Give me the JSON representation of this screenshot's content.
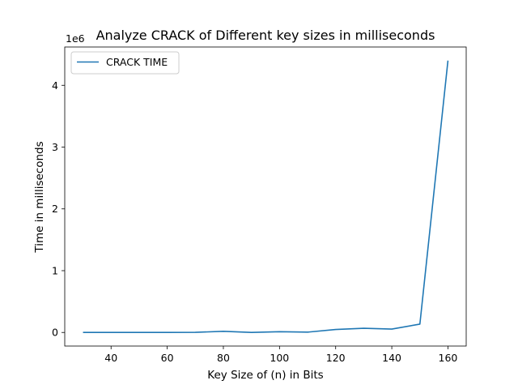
{
  "chart_data": {
    "type": "line",
    "title": "Analyze CRACK of Different key sizes in milliseconds",
    "xlabel": "Key Size of (n) in Bits",
    "ylabel": "Time in milliseconds",
    "y_offset_label": "1e6",
    "xlim": [
      23.5,
      166.5
    ],
    "ylim": [
      -220000,
      4620000
    ],
    "x_ticks": [
      40,
      60,
      80,
      100,
      120,
      140,
      160
    ],
    "y_ticks": [
      0,
      1000000,
      2000000,
      3000000,
      4000000
    ],
    "y_tick_labels": [
      "0",
      "1",
      "2",
      "3",
      "4"
    ],
    "legend_position": "upper-left",
    "grid": false,
    "series": [
      {
        "name": "CRACK TIME",
        "color": "#1f77b4",
        "x": [
          30,
          40,
          50,
          60,
          70,
          80,
          90,
          100,
          110,
          120,
          130,
          140,
          150,
          160
        ],
        "y": [
          0,
          0,
          0,
          1000,
          2000,
          18000,
          0,
          12000,
          5000,
          48000,
          68000,
          55000,
          135000,
          4400000
        ]
      }
    ]
  }
}
